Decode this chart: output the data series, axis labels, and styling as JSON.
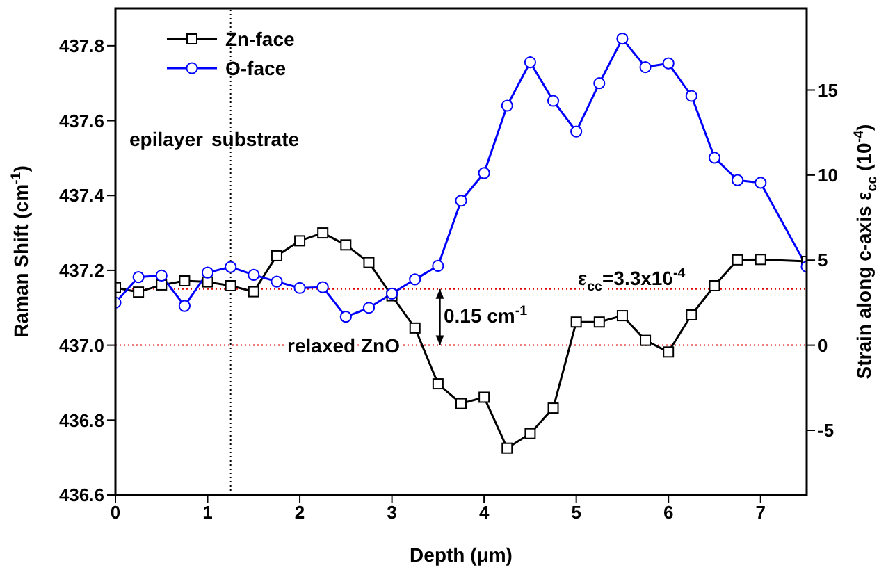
{
  "chart_data": {
    "type": "line",
    "xlabel": "Depth (μm)",
    "ylabel": "Raman Shift (cm$^{-1}$)",
    "y2label": "Strain along c-axis ε$_{cc}$ (10$^{-4}$)",
    "x": [
      0,
      0.25,
      0.5,
      0.75,
      1,
      1.25,
      1.5,
      1.75,
      2,
      2.25,
      2.5,
      2.75,
      3,
      3.25,
      3.5,
      3.75,
      4,
      4.25,
      4.5,
      4.75,
      5,
      5.25,
      5.5,
      5.75,
      6,
      6.25,
      6.5,
      6.75,
      7,
      7.5
    ],
    "series": [
      {
        "name": "Zn-face",
        "color": "#000000",
        "marker": "square",
        "values": [
          437.154,
          437.142,
          437.161,
          437.172,
          437.169,
          437.159,
          437.143,
          437.239,
          437.279,
          437.3,
          437.268,
          437.221,
          437.132,
          437.046,
          436.897,
          436.844,
          436.861,
          436.725,
          436.764,
          436.832,
          437.062,
          437.062,
          437.079,
          437.013,
          436.982,
          437.081,
          437.159,
          437.228,
          437.229,
          437.224
        ]
      },
      {
        "name": "O-face",
        "color": "#0000ff",
        "marker": "circle",
        "values": [
          437.114,
          437.182,
          437.186,
          437.105,
          437.194,
          437.209,
          437.188,
          437.17,
          437.153,
          437.155,
          437.076,
          437.1,
          437.138,
          437.176,
          437.212,
          437.386,
          437.46,
          437.64,
          437.756,
          437.653,
          437.571,
          437.7,
          437.819,
          437.743,
          437.753,
          437.666,
          437.501,
          437.441,
          437.434,
          437.21
        ]
      }
    ],
    "xlim": [
      0,
      7.5
    ],
    "xticks": [
      0,
      1,
      2,
      3,
      4,
      5,
      6,
      7
    ],
    "ylim": [
      436.6,
      437.9
    ],
    "yticks": [
      436.6,
      436.8,
      {
        "value": 437,
        "label": "437.0"
      },
      437.2,
      437.4,
      437.6,
      437.8
    ],
    "y2lim": [
      -8.8,
      19.8
    ],
    "y2ticks": [
      -5,
      0,
      5,
      10,
      15
    ],
    "ref_lines": [
      {
        "axis": "y",
        "value": 437,
        "label": "relaxed ZnO",
        "color": "#e00000",
        "line_style": "dotted"
      },
      {
        "axis": "y",
        "value": 437.15,
        "color": "#e00000",
        "line_style": "dotted"
      },
      {
        "axis": "x",
        "value": 1.25,
        "color": "#000000",
        "line_style": "dotted"
      }
    ],
    "annotations": [
      "epilayer",
      "substrate",
      "0.15 cm$^{-1}$",
      {
        "text": "ε$_{cc}$=3.3x10$^{-4}$",
        "x": 5.6,
        "y": 437.15
      }
    ],
    "legend": "top",
    "grid": false,
    "line_style": "solid"
  }
}
